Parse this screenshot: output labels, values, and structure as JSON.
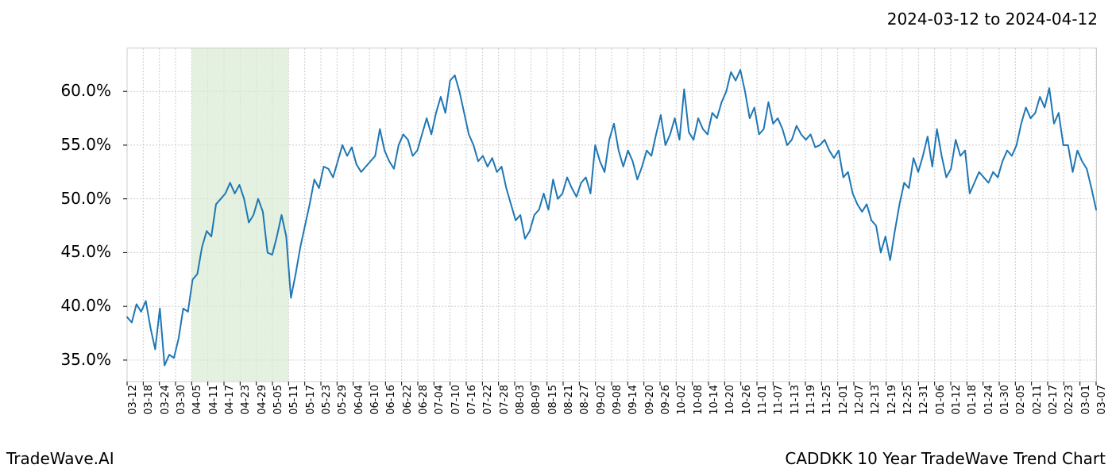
{
  "header": {
    "date_range": "2024-03-12 to 2024-04-12"
  },
  "footer": {
    "left": "TradeWave.AI",
    "right": "CADDKK 10 Year TradeWave Trend Chart"
  },
  "chart": {
    "type": "line",
    "background_color": "#ffffff",
    "grid_color": "#cccccc",
    "grid_dash": "2,2",
    "line_color": "#1f77b4",
    "line_width": 2,
    "highlight_fill": "#d9ead3",
    "highlight_opacity": 0.7,
    "highlight_start_idx": 4,
    "highlight_end_idx": 10,
    "ylim": [
      33,
      64
    ],
    "yticks": [
      35,
      40,
      45,
      50,
      55,
      60
    ],
    "ytick_labels": [
      "35.0%",
      "40.0%",
      "45.0%",
      "50.0%",
      "55.0%",
      "60.0%"
    ],
    "label_fontsize_y": 20,
    "label_fontsize_x": 13,
    "x_labels": [
      "03-12",
      "03-18",
      "03-24",
      "03-30",
      "04-05",
      "04-11",
      "04-17",
      "04-23",
      "04-29",
      "05-05",
      "05-11",
      "05-17",
      "05-23",
      "05-29",
      "06-04",
      "06-10",
      "06-16",
      "06-22",
      "06-28",
      "07-04",
      "07-10",
      "07-16",
      "07-22",
      "07-28",
      "08-03",
      "08-09",
      "08-15",
      "08-21",
      "08-27",
      "09-02",
      "09-08",
      "09-14",
      "09-20",
      "09-26",
      "10-02",
      "10-08",
      "10-14",
      "10-20",
      "10-26",
      "11-01",
      "11-07",
      "11-13",
      "11-19",
      "11-25",
      "12-01",
      "12-07",
      "12-13",
      "12-19",
      "12-25",
      "12-31",
      "01-06",
      "01-12",
      "01-18",
      "01-24",
      "01-30",
      "02-05",
      "02-11",
      "02-17",
      "02-23",
      "03-01",
      "03-07"
    ],
    "values": [
      39.0,
      38.5,
      40.2,
      39.5,
      40.5,
      38.0,
      36.0,
      39.8,
      34.5,
      35.5,
      35.2,
      37.0,
      39.8,
      39.5,
      42.5,
      43.0,
      45.5,
      47.0,
      46.5,
      49.5,
      50.0,
      50.5,
      51.5,
      50.5,
      51.3,
      50.0,
      47.8,
      48.5,
      50.0,
      48.8,
      45.0,
      44.8,
      46.5,
      48.5,
      46.5,
      40.8,
      43.0,
      45.5,
      47.5,
      49.5,
      51.8,
      51.0,
      53.0,
      52.8,
      52.0,
      53.5,
      55.0,
      54.0,
      54.8,
      53.2,
      52.5,
      53.0,
      53.5,
      54.0,
      56.5,
      54.5,
      53.5,
      52.8,
      55.0,
      56.0,
      55.5,
      54.0,
      54.5,
      56.0,
      57.5,
      56.0,
      58.0,
      59.5,
      58.0,
      61.0,
      61.5,
      60.0,
      58.0,
      56.0,
      55.0,
      53.5,
      54.0,
      53.0,
      53.8,
      52.5,
      53.0,
      51.0,
      49.5,
      48.0,
      48.5,
      46.3,
      47.0,
      48.5,
      49.0,
      50.5,
      49.0,
      51.8,
      50.0,
      50.5,
      52.0,
      51.0,
      50.2,
      51.5,
      52.0,
      50.5,
      55.0,
      53.5,
      52.5,
      55.5,
      57.0,
      54.5,
      53.0,
      54.5,
      53.5,
      51.8,
      53.0,
      54.5,
      54.0,
      56.0,
      57.8,
      55.0,
      56.0,
      57.5,
      55.5,
      60.2,
      56.2,
      55.5,
      57.5,
      56.5,
      56.0,
      58.0,
      57.5,
      59.0,
      60.0,
      61.8,
      61.0,
      62.0,
      60.0,
      57.5,
      58.5,
      56.0,
      56.5,
      59.0,
      57.0,
      57.5,
      56.5,
      55.0,
      55.5,
      56.8,
      56.0,
      55.5,
      56.0,
      54.8,
      55.0,
      55.5,
      54.5,
      53.8,
      54.5,
      52.0,
      52.5,
      50.5,
      49.5,
      48.8,
      49.5,
      48.0,
      47.5,
      45.0,
      46.5,
      44.3,
      47.0,
      49.5,
      51.5,
      51.0,
      53.8,
      52.5,
      54.0,
      55.8,
      53.0,
      56.5,
      54.0,
      52.0,
      52.8,
      55.5,
      54.0,
      54.5,
      50.5,
      51.5,
      52.5,
      52.0,
      51.5,
      52.5,
      52.0,
      53.5,
      54.5,
      54.0,
      55.0,
      57.0,
      58.5,
      57.5,
      58.0,
      59.5,
      58.5,
      60.3,
      57.0,
      58.0,
      55.0,
      55.0,
      52.5,
      54.5,
      53.5,
      52.8,
      51.0,
      49.0
    ]
  }
}
